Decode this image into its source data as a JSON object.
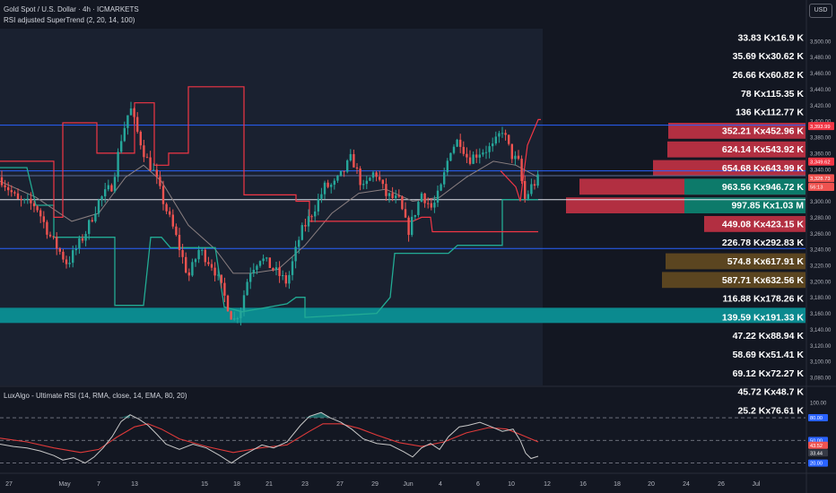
{
  "header": {
    "symbol": "Gold Spot / U.S. Dollar · 4h · ICMARKETS",
    "indicator": "RSI adjusted SuperTrend (2, 20, 14, 100)",
    "currency_button": "USD"
  },
  "rsi_pane": {
    "title": "LuxAlgo - Ultimate RSI (14, RMA, close, 14, EMA, 80, 20)"
  },
  "colors": {
    "background": "#131722",
    "up": "#26a69a",
    "down": "#ef5350",
    "supertrend_bear": "#f23645",
    "supertrend_bull": "#22ab94",
    "hline_blue": "#2962ff",
    "hline_white": "#e0e3eb",
    "zone": "#0b8a8f",
    "vp_red": "#b22f41",
    "vp_green": "#0d7a6a",
    "vp_brown": "#5b4520"
  },
  "chart_data": [
    {
      "type": "candlestick",
      "title": "Gold Spot / U.S. Dollar · 4h · ICMARKETS",
      "ylim": [
        3070,
        3520
      ],
      "y_ticks": [
        "3,500.00",
        "3,480.00",
        "3,460.00",
        "3,440.00",
        "3,420.00",
        "3,400.00",
        "3,380.00",
        "3,360.00",
        "3,340.00",
        "3,320.00",
        "3,300.00",
        "3,280.00",
        "3,260.00",
        "3,240.00",
        "3,220.00",
        "3,200.00",
        "3,180.00",
        "3,160.00",
        "3,140.00",
        "3,120.00",
        "3,100.00",
        "3,080.00"
      ],
      "x_labels": [
        "27",
        "May",
        "7",
        "13",
        "15",
        "18",
        "21",
        "23",
        "27",
        "29",
        "Jun",
        "4",
        "6",
        "10",
        "12",
        "16",
        "18",
        "20",
        "24",
        "26",
        "Jul"
      ],
      "anchors": [
        [
          0,
          3330
        ],
        [
          20,
          3300
        ],
        [
          40,
          3295
        ],
        [
          55,
          3258
        ],
        [
          75,
          3222
        ],
        [
          95,
          3260
        ],
        [
          110,
          3300
        ],
        [
          125,
          3320
        ],
        [
          135,
          3378
        ],
        [
          145,
          3418
        ],
        [
          152,
          3390
        ],
        [
          162,
          3356
        ],
        [
          172,
          3335
        ],
        [
          182,
          3300
        ],
        [
          195,
          3260
        ],
        [
          210,
          3205
        ],
        [
          222,
          3240
        ],
        [
          238,
          3218
        ],
        [
          250,
          3182
        ],
        [
          260,
          3150
        ],
        [
          268,
          3165
        ],
        [
          278,
          3212
        ],
        [
          290,
          3230
        ],
        [
          305,
          3215
        ],
        [
          320,
          3198
        ],
        [
          335,
          3260
        ],
        [
          350,
          3290
        ],
        [
          362,
          3318
        ],
        [
          372,
          3320
        ],
        [
          382,
          3335
        ],
        [
          392,
          3355
        ],
        [
          405,
          3315
        ],
        [
          418,
          3338
        ],
        [
          430,
          3308
        ],
        [
          445,
          3300
        ],
        [
          455,
          3262
        ],
        [
          470,
          3310
        ],
        [
          482,
          3290
        ],
        [
          492,
          3318
        ],
        [
          502,
          3365
        ],
        [
          512,
          3378
        ],
        [
          522,
          3352
        ],
        [
          535,
          3362
        ],
        [
          550,
          3368
        ],
        [
          560,
          3390
        ],
        [
          570,
          3358
        ],
        [
          578,
          3348
        ],
        [
          585,
          3302
        ],
        [
          592,
          3318
        ],
        [
          600,
          3328
        ]
      ],
      "supertrend_bear": [
        [
          0,
          3350
        ],
        [
          60,
          3350
        ],
        [
          60,
          3280
        ],
        [
          70,
          3280
        ],
        [
          70,
          3398
        ],
        [
          108,
          3398
        ],
        [
          108,
          3360
        ],
        [
          150,
          3360
        ],
        [
          150,
          3423
        ],
        [
          172,
          3423
        ],
        [
          172,
          3345
        ],
        [
          188,
          3345
        ],
        [
          188,
          3360
        ],
        [
          210,
          3360
        ],
        [
          210,
          3443
        ],
        [
          272,
          3443
        ],
        [
          272,
          3308
        ],
        [
          330,
          3308
        ],
        [
          330,
          3300
        ],
        [
          345,
          3300
        ],
        [
          345,
          3275
        ],
        [
          440,
          3275
        ],
        [
          460,
          3275
        ],
        [
          470,
          3280
        ],
        [
          480,
          3280
        ],
        [
          482,
          3262
        ],
        [
          600,
          3262
        ]
      ],
      "supertrend_bear2": [
        [
          558,
          3338
        ],
        [
          575,
          3318
        ],
        [
          580,
          3300
        ],
        [
          588,
          3370
        ],
        [
          600,
          3402
        ],
        [
          603,
          3402
        ]
      ],
      "supertrend_bull": [
        [
          0,
          3342
        ],
        [
          30,
          3342
        ],
        [
          40,
          3295
        ],
        [
          60,
          3295
        ],
        [
          60,
          3255
        ],
        [
          100,
          3255
        ],
        [
          128,
          3255
        ],
        [
          128,
          3170
        ],
        [
          160,
          3170
        ],
        [
          168,
          3255
        ],
        [
          180,
          3255
        ],
        [
          190,
          3242
        ],
        [
          210,
          3242
        ],
        [
          240,
          3242
        ],
        [
          250,
          3168
        ],
        [
          270,
          3162
        ],
        [
          300,
          3168
        ],
        [
          320,
          3172
        ],
        [
          330,
          3180
        ],
        [
          340,
          3180
        ],
        [
          340,
          3155
        ],
        [
          420,
          3160
        ],
        [
          435,
          3180
        ],
        [
          440,
          3235
        ],
        [
          500,
          3235
        ],
        [
          510,
          3245
        ],
        [
          560,
          3245
        ],
        [
          560,
          3302
        ],
        [
          600,
          3302
        ]
      ],
      "ema": [
        [
          0,
          3325
        ],
        [
          40,
          3305
        ],
        [
          80,
          3275
        ],
        [
          110,
          3285
        ],
        [
          140,
          3330
        ],
        [
          160,
          3345
        ],
        [
          180,
          3325
        ],
        [
          210,
          3270
        ],
        [
          240,
          3240
        ],
        [
          260,
          3210
        ],
        [
          280,
          3210
        ],
        [
          310,
          3215
        ],
        [
          340,
          3245
        ],
        [
          370,
          3285
        ],
        [
          400,
          3310
        ],
        [
          430,
          3315
        ],
        [
          460,
          3300
        ],
        [
          490,
          3305
        ],
        [
          520,
          3330
        ],
        [
          550,
          3350
        ],
        [
          575,
          3345
        ],
        [
          600,
          3330
        ]
      ],
      "horizontal_levels": [
        {
          "price": 3395,
          "color": "#2962ff",
          "label": "3,393.99"
        },
        {
          "price": 3338,
          "color": "#2962ff"
        },
        {
          "price": 3332,
          "color": "#5b6c96"
        },
        {
          "price": 3302,
          "color": "#e0e3eb"
        },
        {
          "price": 3241,
          "color": "#2962ff"
        }
      ],
      "zone": {
        "from": 3148,
        "to": 3167
      },
      "price_tags": [
        {
          "price": 3393.99,
          "text": "3,393.99",
          "bg": "#f23645"
        },
        {
          "price": 3349.62,
          "text": "3,349.62",
          "bg": "#f23645"
        },
        {
          "price": 3328.73,
          "text": "3,328.73",
          "bg": "#ef5350"
        },
        {
          "price": 3318.0,
          "text": "56:13",
          "bg": "#ef5350"
        }
      ],
      "volume_profile": [
        {
          "label": "33.83 K",
          "label2": "16.9 K",
          "up": 0,
          "down": 0,
          "color": "red"
        },
        {
          "label": "35.69 K",
          "label2": "30.62 K",
          "up": 0,
          "down": 0,
          "color": "red"
        },
        {
          "label": "26.66 K",
          "label2": "60.82 K",
          "up": 0,
          "down": 0,
          "color": "red"
        },
        {
          "label": "78 K",
          "label2": "115.35 K",
          "up": 0,
          "down": 0,
          "color": "red"
        },
        {
          "label": "136 K",
          "label2": "112.77 K",
          "up": 0,
          "down": 0,
          "color": "red"
        },
        {
          "label": "352.21 K",
          "label2": "452.96 K",
          "up": 0,
          "down": 0,
          "color": "red"
        },
        {
          "label": "624.14 K",
          "label2": "543.92 K",
          "up": 0,
          "down": 0,
          "color": "red"
        },
        {
          "label": "654.68 K",
          "label2": "643.99 K",
          "up": 0,
          "down": 0,
          "color": "red"
        },
        {
          "label": "963.56 K",
          "label2": "946.72 K",
          "up": 0,
          "down": 0,
          "color": "red"
        },
        {
          "label": "997.85 K",
          "label2": "1.03 M",
          "up": 0,
          "down": 0,
          "color": "red"
        },
        {
          "label": "449.08 K",
          "label2": "423.15 K",
          "up": 0,
          "down": 0,
          "color": "red"
        },
        {
          "label": "226.78 K",
          "label2": "292.83 K",
          "up": 0,
          "down": 0,
          "color": "red"
        },
        {
          "label": "574.8 K",
          "label2": "617.91 K",
          "up": 0,
          "down": 0,
          "color": "brown"
        },
        {
          "label": "587.71 K",
          "label2": "632.56 K",
          "up": 0,
          "down": 0,
          "color": "brown"
        },
        {
          "label": "116.88 K",
          "label2": "178.26 K",
          "up": 0,
          "down": 0,
          "color": "brown"
        },
        {
          "label": "139.59 K",
          "label2": "191.33 K",
          "up": 0,
          "down": 0,
          "color": "brown"
        },
        {
          "label": "47.22 K",
          "label2": "88.94 K",
          "up": 0,
          "down": 0,
          "color": "red"
        },
        {
          "label": "58.69 K",
          "label2": "51.41 K",
          "up": 0,
          "down": 0,
          "color": "red"
        },
        {
          "label": "69.12 K",
          "label2": "72.27 K",
          "up": 0,
          "down": 0,
          "color": "red"
        },
        {
          "label": "45.72 K",
          "label2": "48.7 K",
          "up": 0,
          "down": 0,
          "color": "red"
        },
        {
          "label": "25.2 K",
          "label2": "76.61 K",
          "up": 0,
          "down": 0,
          "color": "red"
        }
      ]
    },
    {
      "type": "line",
      "title": "LuxAlgo - Ultimate RSI (14, RMA, close, 14, EMA, 80, 20)",
      "ylim": [
        10,
        105
      ],
      "y_ticks": [
        "100.00",
        "80.00",
        "50.00",
        "20.00"
      ],
      "levels": [
        80,
        50,
        20
      ],
      "rsi": [
        [
          0,
          45
        ],
        [
          15,
          42
        ],
        [
          30,
          40
        ],
        [
          45,
          36
        ],
        [
          60,
          30
        ],
        [
          70,
          24
        ],
        [
          82,
          27
        ],
        [
          95,
          20
        ],
        [
          105,
          28
        ],
        [
          115,
          40
        ],
        [
          125,
          55
        ],
        [
          135,
          75
        ],
        [
          145,
          84
        ],
        [
          155,
          78
        ],
        [
          165,
          70
        ],
        [
          175,
          58
        ],
        [
          185,
          45
        ],
        [
          200,
          38
        ],
        [
          215,
          45
        ],
        [
          230,
          40
        ],
        [
          245,
          30
        ],
        [
          258,
          20
        ],
        [
          268,
          28
        ],
        [
          280,
          36
        ],
        [
          292,
          44
        ],
        [
          305,
          40
        ],
        [
          320,
          48
        ],
        [
          335,
          70
        ],
        [
          345,
          82
        ],
        [
          358,
          87
        ],
        [
          368,
          80
        ],
        [
          380,
          74
        ],
        [
          392,
          65
        ],
        [
          405,
          52
        ],
        [
          420,
          46
        ],
        [
          435,
          44
        ],
        [
          450,
          35
        ],
        [
          460,
          28
        ],
        [
          470,
          40
        ],
        [
          480,
          46
        ],
        [
          490,
          38
        ],
        [
          500,
          55
        ],
        [
          512,
          68
        ],
        [
          522,
          70
        ],
        [
          535,
          74
        ],
        [
          548,
          68
        ],
        [
          560,
          62
        ],
        [
          572,
          65
        ],
        [
          580,
          50
        ],
        [
          586,
          33
        ],
        [
          592,
          26
        ],
        [
          600,
          29
        ]
      ],
      "signal": [
        [
          0,
          53
        ],
        [
          30,
          48
        ],
        [
          60,
          40
        ],
        [
          90,
          34
        ],
        [
          110,
          38
        ],
        [
          130,
          54
        ],
        [
          150,
          68
        ],
        [
          165,
          72
        ],
        [
          180,
          65
        ],
        [
          200,
          52
        ],
        [
          230,
          42
        ],
        [
          260,
          34
        ],
        [
          290,
          40
        ],
        [
          320,
          44
        ],
        [
          345,
          62
        ],
        [
          360,
          72
        ],
        [
          380,
          72
        ],
        [
          400,
          66
        ],
        [
          420,
          57
        ],
        [
          445,
          47
        ],
        [
          470,
          42
        ],
        [
          495,
          48
        ],
        [
          520,
          60
        ],
        [
          545,
          67
        ],
        [
          565,
          65
        ],
        [
          580,
          58
        ],
        [
          600,
          48
        ]
      ],
      "values": [
        {
          "text": "80.00"
        },
        {
          "text": "50.00"
        },
        {
          "text": "43.52"
        },
        {
          "text": "33.44"
        },
        {
          "text": "20.00"
        }
      ]
    }
  ]
}
